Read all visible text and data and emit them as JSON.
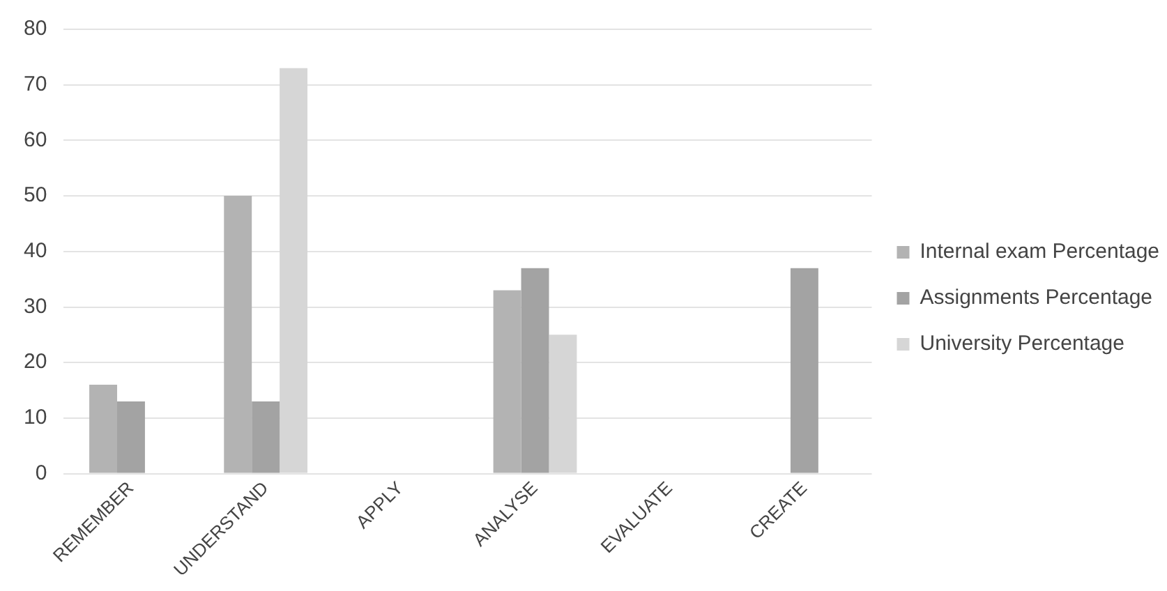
{
  "chart_data": {
    "type": "bar",
    "categories": [
      "REMEMBER",
      "UNDERSTAND",
      "APPLY",
      "ANALYSE",
      "EVALUATE",
      "CREATE"
    ],
    "series": [
      {
        "name": "Internal exam Percentage",
        "color": "#b3b3b3",
        "values": [
          16,
          50,
          0,
          33,
          0,
          0
        ]
      },
      {
        "name": "Assignments Percentage",
        "color": "#a3a3a3",
        "values": [
          13,
          13,
          0,
          37,
          0,
          37
        ]
      },
      {
        "name": "University Percentage",
        "color": "#d6d6d6",
        "values": [
          0,
          73,
          0,
          25,
          0,
          0
        ]
      }
    ],
    "ylim": [
      0,
      80
    ],
    "yticks": [
      0,
      10,
      20,
      30,
      40,
      50,
      60,
      70,
      80
    ],
    "grid": "y",
    "legend": "right"
  }
}
